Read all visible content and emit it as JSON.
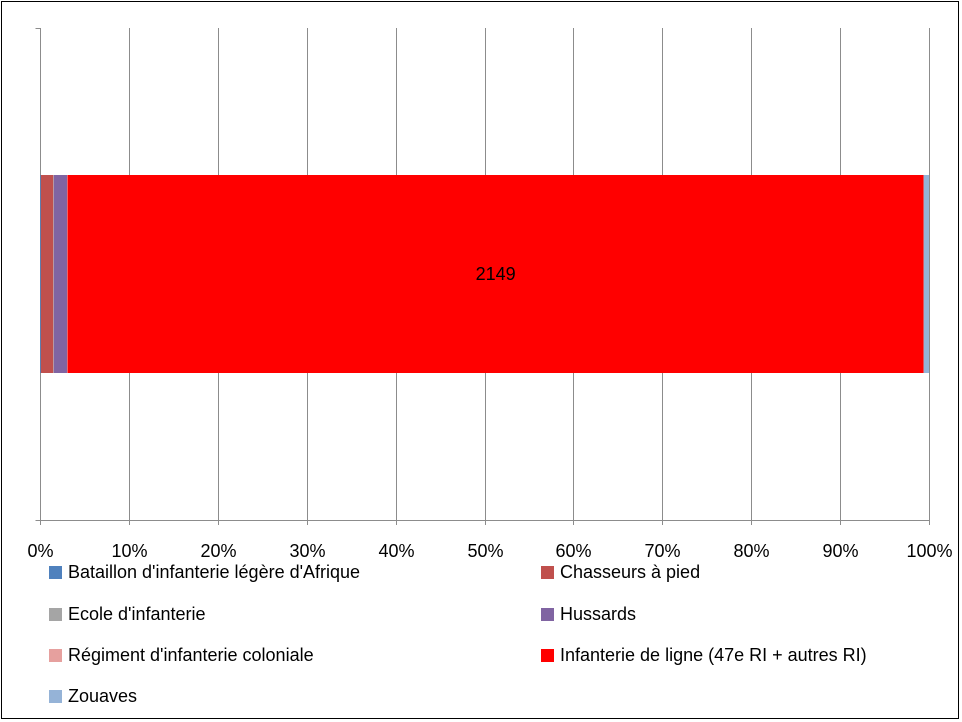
{
  "chart_data": {
    "type": "bar",
    "orientation": "horizontal",
    "stacked": "percent",
    "xlim": [
      0,
      100
    ],
    "x_ticks": [
      "0%",
      "10%",
      "20%",
      "30%",
      "40%",
      "50%",
      "60%",
      "70%",
      "80%",
      "90%",
      "100%"
    ],
    "grid": true,
    "legend_position": "bottom",
    "series": [
      {
        "name": "Bataillon d'infanterie légère d'Afrique",
        "percent": 0.1,
        "color": "#4F81BD"
      },
      {
        "name": "Chasseurs à pied",
        "percent": 1.4,
        "color": "#C0504D"
      },
      {
        "name": "Ecole d'infanterie",
        "percent": 0.05,
        "color": "#A5A5A5"
      },
      {
        "name": "Hussards",
        "percent": 1.5,
        "color": "#8064A2"
      },
      {
        "name": "Régiment d'infanterie coloniale",
        "percent": 0.05,
        "color": "#E6A09E"
      },
      {
        "name": "Infanterie de ligne (47e RI + autres RI)",
        "percent": 96.3,
        "value": 2149,
        "data_label": "2149",
        "color": "#FF0000"
      },
      {
        "name": "Zouaves",
        "percent": 0.6,
        "color": "#95B3D7"
      }
    ]
  }
}
